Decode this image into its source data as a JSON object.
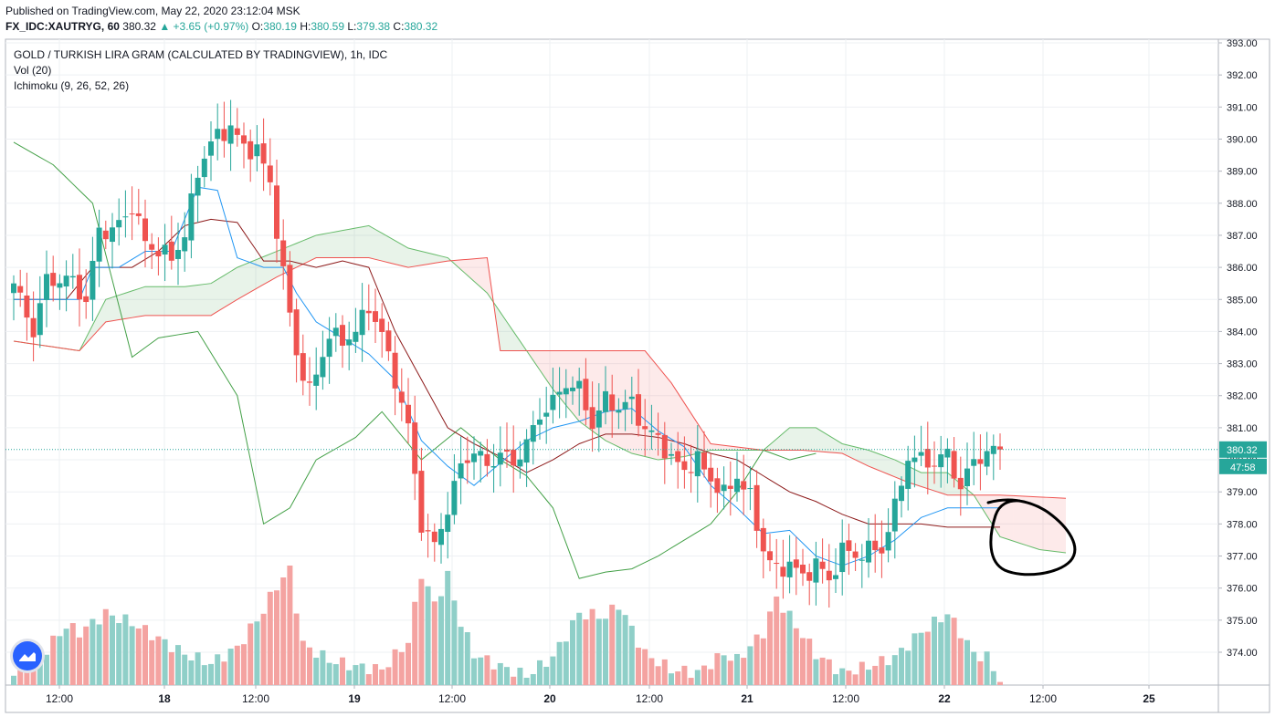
{
  "header": {
    "published": "Published on TradingView.com, May 22, 2020 23:12:04 MSK",
    "symbol": "FX_IDC:XAUTRYG, 60",
    "last": "380.32",
    "change": "▲ +3.65 (+0.97%)",
    "o_label": "O:",
    "o_value": "380.19",
    "h_label": "H:",
    "h_value": "380.59",
    "l_label": "L:",
    "l_value": "379.38",
    "c_label": "C:",
    "c_value": "380.32"
  },
  "legend": {
    "title": "GOLD / TURKISH LIRA GRAM (CALCULATED BY TRADINGVIEW), 1h, IDC",
    "vol": "Vol (20)",
    "ichimoku": "Ichimoku (9, 26, 52, 26)"
  },
  "price_tag": {
    "price": "380.32",
    "countdown": "47:58"
  },
  "colors": {
    "up": "#26a69a",
    "down": "#ef5350",
    "up_vol": "#8fcfc8",
    "down_vol": "#f4a3a1",
    "conversion": "#2196f3",
    "base": "#8d1a1a",
    "lagging": "#43a047",
    "span_a": "#66bb6a",
    "span_b": "#ef5350",
    "annotation": "#000000"
  },
  "chart_data": {
    "type": "candlestick",
    "y_axis": {
      "min": 373,
      "max": 393,
      "ticks": [
        "393.00",
        "392.00",
        "391.00",
        "390.00",
        "389.00",
        "388.00",
        "387.00",
        "386.00",
        "385.00",
        "384.00",
        "383.00",
        "382.00",
        "381.00",
        "380.00",
        "379.00",
        "378.00",
        "377.00",
        "376.00",
        "375.00",
        "374.00"
      ]
    },
    "x_axis": {
      "ticks": [
        "12:00",
        "18",
        "12:00",
        "19",
        "12:00",
        "20",
        "12:00",
        "21",
        "12:00",
        "22",
        "12:00",
        "25"
      ]
    },
    "current_price": 380.32,
    "close_path_anchors": [
      [
        0,
        385.5
      ],
      [
        3,
        384.0
      ],
      [
        5,
        385.6
      ],
      [
        9,
        385.6
      ],
      [
        11,
        384.9
      ],
      [
        13,
        387.2
      ],
      [
        15,
        387.1
      ],
      [
        18,
        387.9
      ],
      [
        20,
        386.8
      ],
      [
        22,
        386.5
      ],
      [
        24,
        386.3
      ],
      [
        26,
        387.0
      ],
      [
        28,
        389.0
      ],
      [
        30,
        389.9
      ],
      [
        33,
        390.4
      ],
      [
        35,
        389.7
      ],
      [
        37,
        389.7
      ],
      [
        39,
        388.6
      ],
      [
        41,
        385.8
      ],
      [
        43,
        383.3
      ],
      [
        45,
        382.1
      ],
      [
        48,
        383.9
      ],
      [
        50,
        383.7
      ],
      [
        52,
        384.0
      ],
      [
        54,
        384.8
      ],
      [
        56,
        383.9
      ],
      [
        58,
        382.5
      ],
      [
        60,
        381.0
      ],
      [
        62,
        378.0
      ],
      [
        64,
        377.3
      ],
      [
        66,
        378.5
      ],
      [
        68,
        379.8
      ],
      [
        70,
        380.3
      ],
      [
        72,
        379.8
      ],
      [
        74,
        380.2
      ],
      [
        76,
        379.9
      ],
      [
        78,
        380.5
      ],
      [
        80,
        381.4
      ],
      [
        82,
        381.8
      ],
      [
        84,
        382.4
      ],
      [
        86,
        382.2
      ],
      [
        88,
        381.1
      ],
      [
        90,
        381.9
      ],
      [
        92,
        381.6
      ],
      [
        94,
        381.8
      ],
      [
        96,
        380.9
      ],
      [
        98,
        380.7
      ],
      [
        100,
        380.0
      ],
      [
        102,
        379.7
      ],
      [
        104,
        380.0
      ],
      [
        106,
        379.4
      ],
      [
        108,
        378.9
      ],
      [
        110,
        379.5
      ],
      [
        112,
        378.8
      ],
      [
        114,
        377.2
      ],
      [
        116,
        376.5
      ],
      [
        118,
        376.8
      ],
      [
        120,
        376.3
      ],
      [
        122,
        376.8
      ],
      [
        124,
        376.2
      ],
      [
        126,
        377.2
      ],
      [
        128,
        377.0
      ],
      [
        130,
        377.2
      ],
      [
        132,
        377.2
      ],
      [
        134,
        378.5
      ],
      [
        136,
        380.1
      ],
      [
        138,
        380.0
      ],
      [
        140,
        379.9
      ],
      [
        142,
        380.2
      ],
      [
        144,
        379.1
      ],
      [
        146,
        380.0
      ],
      [
        148,
        380.2
      ],
      [
        150,
        380.3
      ]
    ],
    "volume_path_anchors": [
      [
        0,
        0.3
      ],
      [
        4,
        0.9
      ],
      [
        8,
        1.9
      ],
      [
        10,
        1.7
      ],
      [
        14,
        2.3
      ],
      [
        18,
        2.0
      ],
      [
        22,
        1.5
      ],
      [
        26,
        1.0
      ],
      [
        30,
        0.7
      ],
      [
        34,
        1.2
      ],
      [
        38,
        2.4
      ],
      [
        40,
        3.2
      ],
      [
        42,
        3.7
      ],
      [
        44,
        1.3
      ],
      [
        48,
        0.8
      ],
      [
        52,
        0.6
      ],
      [
        56,
        0.5
      ],
      [
        60,
        1.4
      ],
      [
        62,
        3.6
      ],
      [
        64,
        2.6
      ],
      [
        66,
        3.5
      ],
      [
        68,
        2.0
      ],
      [
        70,
        1.0
      ],
      [
        74,
        0.6
      ],
      [
        78,
        0.3
      ],
      [
        82,
        0.9
      ],
      [
        86,
        2.3
      ],
      [
        90,
        2.2
      ],
      [
        92,
        2.6
      ],
      [
        94,
        1.8
      ],
      [
        96,
        1.0
      ],
      [
        100,
        0.5
      ],
      [
        104,
        0.4
      ],
      [
        108,
        1.0
      ],
      [
        110,
        0.8
      ],
      [
        114,
        1.7
      ],
      [
        116,
        2.8
      ],
      [
        118,
        2.2
      ],
      [
        122,
        1.0
      ],
      [
        126,
        0.4
      ],
      [
        130,
        0.6
      ],
      [
        134,
        0.9
      ],
      [
        138,
        1.7
      ],
      [
        140,
        2.0
      ],
      [
        142,
        2.3
      ],
      [
        144,
        1.7
      ],
      [
        146,
        1.0
      ],
      [
        148,
        0.9
      ],
      [
        150,
        0.1
      ]
    ],
    "ichimoku": {
      "conversion": [
        [
          0,
          385.0
        ],
        [
          6,
          385.0
        ],
        [
          10,
          385.0
        ],
        [
          12,
          386.0
        ],
        [
          16,
          386.0
        ],
        [
          20,
          386.5
        ],
        [
          24,
          386.5
        ],
        [
          28,
          388.5
        ],
        [
          31,
          388.4
        ],
        [
          34,
          386.3
        ],
        [
          38,
          386.0
        ],
        [
          41,
          386.0
        ],
        [
          43,
          385.2
        ],
        [
          46,
          384.3
        ],
        [
          50,
          383.8
        ],
        [
          54,
          383.3
        ],
        [
          58,
          382.5
        ],
        [
          62,
          380.6
        ],
        [
          66,
          379.8
        ],
        [
          70,
          379.2
        ],
        [
          74,
          379.9
        ],
        [
          78,
          380.6
        ],
        [
          82,
          381.0
        ],
        [
          86,
          381.2
        ],
        [
          90,
          381.5
        ],
        [
          94,
          381.6
        ],
        [
          98,
          380.9
        ],
        [
          102,
          380.4
        ],
        [
          106,
          379.2
        ],
        [
          110,
          378.5
        ],
        [
          114,
          377.7
        ],
        [
          118,
          377.8
        ],
        [
          122,
          377.0
        ],
        [
          126,
          376.7
        ],
        [
          130,
          377.0
        ],
        [
          134,
          377.5
        ],
        [
          138,
          378.2
        ],
        [
          142,
          378.5
        ],
        [
          146,
          378.5
        ],
        [
          150,
          378.5
        ]
      ],
      "base": [
        [
          0,
          385.0
        ],
        [
          8,
          385.0
        ],
        [
          12,
          386.0
        ],
        [
          18,
          386.0
        ],
        [
          22,
          386.5
        ],
        [
          26,
          387.3
        ],
        [
          30,
          387.5
        ],
        [
          34,
          387.4
        ],
        [
          38,
          386.2
        ],
        [
          42,
          386.2
        ],
        [
          46,
          386.0
        ],
        [
          50,
          386.2
        ],
        [
          54,
          386.0
        ],
        [
          58,
          384.0
        ],
        [
          62,
          382.5
        ],
        [
          66,
          381.0
        ],
        [
          70,
          380.5
        ],
        [
          74,
          380.1
        ],
        [
          78,
          379.6
        ],
        [
          82,
          380.0
        ],
        [
          86,
          380.5
        ],
        [
          90,
          380.8
        ],
        [
          94,
          380.8
        ],
        [
          98,
          380.7
        ],
        [
          102,
          380.5
        ],
        [
          106,
          380.2
        ],
        [
          110,
          380.0
        ],
        [
          114,
          379.5
        ],
        [
          118,
          379.0
        ],
        [
          122,
          378.7
        ],
        [
          126,
          378.3
        ],
        [
          130,
          378.0
        ],
        [
          134,
          378.0
        ],
        [
          138,
          378.0
        ],
        [
          142,
          377.9
        ],
        [
          146,
          377.9
        ],
        [
          150,
          377.9
        ]
      ],
      "lagging": [
        [
          0,
          389.9
        ],
        [
          6,
          389.2
        ],
        [
          12,
          388.0
        ],
        [
          18,
          383.2
        ],
        [
          22,
          383.8
        ],
        [
          28,
          384.0
        ],
        [
          34,
          382.0
        ],
        [
          38,
          378.0
        ],
        [
          42,
          378.5
        ],
        [
          46,
          380.0
        ],
        [
          52,
          380.7
        ],
        [
          56,
          381.5
        ],
        [
          62,
          380.0
        ],
        [
          68,
          381.0
        ],
        [
          74,
          380.0
        ],
        [
          78,
          379.5
        ],
        [
          82,
          378.5
        ],
        [
          86,
          376.3
        ],
        [
          90,
          376.5
        ],
        [
          94,
          376.6
        ],
        [
          98,
          377.0
        ],
        [
          102,
          377.5
        ],
        [
          106,
          378.0
        ],
        [
          110,
          379.0
        ],
        [
          114,
          380.3
        ],
        [
          118,
          380.0
        ],
        [
          122,
          380.2
        ]
      ],
      "span_a": [
        [
          0,
          383.7
        ],
        [
          10,
          383.4
        ],
        [
          14,
          385.0
        ],
        [
          20,
          385.4
        ],
        [
          26,
          385.4
        ],
        [
          30,
          385.5
        ],
        [
          34,
          386.0
        ],
        [
          40,
          386.5
        ],
        [
          46,
          387.0
        ],
        [
          54,
          387.3
        ],
        [
          60,
          386.6
        ],
        [
          66,
          386.3
        ],
        [
          72,
          385.2
        ],
        [
          78,
          383.4
        ],
        [
          82,
          382.2
        ],
        [
          86,
          381.2
        ],
        [
          90,
          380.6
        ],
        [
          94,
          380.2
        ],
        [
          98,
          380.0
        ],
        [
          102,
          380.1
        ],
        [
          106,
          380.3
        ],
        [
          110,
          380.3
        ],
        [
          114,
          380.3
        ],
        [
          118,
          381.0
        ],
        [
          122,
          381.0
        ],
        [
          126,
          380.5
        ],
        [
          130,
          380.3
        ],
        [
          134,
          380.0
        ],
        [
          138,
          379.6
        ],
        [
          142,
          379.6
        ],
        [
          146,
          378.9
        ],
        [
          150,
          377.6
        ],
        [
          156,
          377.2
        ],
        [
          160,
          377.1
        ]
      ],
      "span_b": [
        [
          0,
          383.7
        ],
        [
          10,
          383.4
        ],
        [
          14,
          384.3
        ],
        [
          20,
          384.5
        ],
        [
          26,
          384.5
        ],
        [
          30,
          384.5
        ],
        [
          34,
          385.0
        ],
        [
          40,
          385.7
        ],
        [
          46,
          386.3
        ],
        [
          54,
          386.3
        ],
        [
          60,
          386.0
        ],
        [
          66,
          386.2
        ],
        [
          72,
          386.3
        ],
        [
          74,
          383.4
        ],
        [
          82,
          383.4
        ],
        [
          90,
          383.4
        ],
        [
          96,
          383.4
        ],
        [
          100,
          382.4
        ],
        [
          106,
          380.5
        ],
        [
          114,
          380.3
        ],
        [
          120,
          380.3
        ],
        [
          126,
          380.2
        ],
        [
          130,
          379.8
        ],
        [
          136,
          379.3
        ],
        [
          142,
          378.9
        ],
        [
          150,
          378.9
        ],
        [
          160,
          378.8
        ]
      ]
    }
  }
}
